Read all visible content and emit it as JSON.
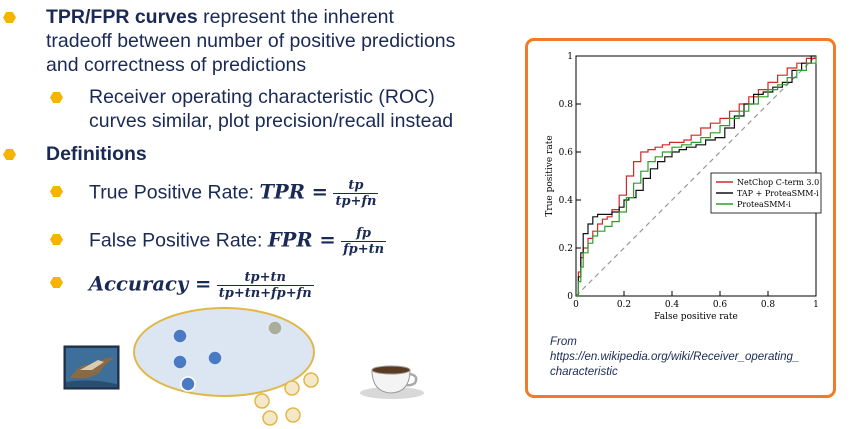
{
  "bullets": {
    "b1_bold": "TPR/FPR curves",
    "b1_line1_rest": " represent the inherent",
    "b1_line2": "tradeoff between number of positive predictions",
    "b1_line3": "and correctness of predictions",
    "b1_sub_line1": "Receiver operating characteristic (ROC)",
    "b1_sub_line2": "curves similar, plot precision/recall instead",
    "b2": "Definitions",
    "tpr_label": "True Positive Rate: ",
    "tpr_lhs": "TPR =",
    "tpr_num": "tp",
    "tpr_den": "tp+fn",
    "fpr_label": "False Positive Rate: ",
    "fpr_lhs": "FPR =",
    "fpr_num": "fp",
    "fpr_den": "fp+tn",
    "acc_lhs": "Accuracy =",
    "acc_num": "tp+tn",
    "acc_den": "tp+tn+fp+fn"
  },
  "caption": {
    "line1": "From",
    "line2": "https://en.wikipedia.org/wiki/Receiver_operating_",
    "line3": "characteristic"
  },
  "colors": {
    "bullet": "#f4b400",
    "frame": "#f07b2a",
    "ellipse_fill": "#dce6f2",
    "ellipse_stroke": "#e0b84a",
    "blue_dot": "#4a7ac4",
    "gray_dot": "#a9ad9a",
    "cream_dot": "#f4e8c8"
  },
  "chart_data": {
    "type": "line",
    "xlabel": "False positive rate",
    "ylabel": "True positive rate",
    "xlim": [
      0,
      1
    ],
    "ylim": [
      0,
      1
    ],
    "x_ticks": [
      0,
      0.2,
      0.4,
      0.6,
      0.8,
      1
    ],
    "y_ticks": [
      0,
      0.2,
      0.4,
      0.6,
      0.8,
      1
    ],
    "x_tick_labels": [
      "0",
      "0.2",
      "0.4",
      "0.6",
      "0.8",
      "1"
    ],
    "y_tick_labels": [
      "0",
      "0.2",
      "0.4",
      "0.6",
      "0.8",
      "1"
    ],
    "legend_position": "center-right",
    "series": [
      {
        "name": "NetChop C-term 3.0",
        "color": "#d62728",
        "x": [
          0,
          0.01,
          0.02,
          0.03,
          0.05,
          0.07,
          0.09,
          0.11,
          0.13,
          0.15,
          0.18,
          0.21,
          0.24,
          0.27,
          0.3,
          0.33,
          0.36,
          0.39,
          0.42,
          0.45,
          0.48,
          0.52,
          0.56,
          0.6,
          0.64,
          0.68,
          0.72,
          0.76,
          0.8,
          0.84,
          0.88,
          0.92,
          0.96,
          1
        ],
        "y": [
          0,
          0.1,
          0.16,
          0.2,
          0.24,
          0.27,
          0.3,
          0.32,
          0.33,
          0.36,
          0.42,
          0.5,
          0.56,
          0.6,
          0.61,
          0.62,
          0.63,
          0.64,
          0.64,
          0.65,
          0.67,
          0.7,
          0.72,
          0.74,
          0.77,
          0.8,
          0.83,
          0.86,
          0.89,
          0.92,
          0.95,
          0.97,
          0.99,
          1
        ]
      },
      {
        "name": "TAP + ProteaSMM-i",
        "color": "#111111",
        "x": [
          0,
          0.01,
          0.02,
          0.03,
          0.05,
          0.07,
          0.09,
          0.12,
          0.15,
          0.18,
          0.2,
          0.22,
          0.25,
          0.28,
          0.31,
          0.34,
          0.37,
          0.4,
          0.43,
          0.46,
          0.5,
          0.54,
          0.58,
          0.62,
          0.66,
          0.7,
          0.74,
          0.78,
          0.82,
          0.86,
          0.9,
          0.94,
          0.98,
          1
        ],
        "y": [
          0,
          0.08,
          0.18,
          0.26,
          0.3,
          0.33,
          0.34,
          0.34,
          0.35,
          0.37,
          0.4,
          0.41,
          0.44,
          0.49,
          0.53,
          0.56,
          0.58,
          0.6,
          0.61,
          0.62,
          0.63,
          0.65,
          0.66,
          0.7,
          0.75,
          0.8,
          0.84,
          0.85,
          0.87,
          0.89,
          0.94,
          0.97,
          1,
          1
        ]
      },
      {
        "name": "ProteaSMM-i",
        "color": "#2ca02c",
        "x": [
          0,
          0.01,
          0.02,
          0.03,
          0.05,
          0.07,
          0.09,
          0.12,
          0.15,
          0.18,
          0.21,
          0.24,
          0.27,
          0.3,
          0.33,
          0.36,
          0.4,
          0.44,
          0.48,
          0.52,
          0.56,
          0.6,
          0.64,
          0.68,
          0.72,
          0.76,
          0.8,
          0.84,
          0.88,
          0.92,
          0.96,
          1
        ],
        "y": [
          0,
          0.06,
          0.12,
          0.18,
          0.22,
          0.25,
          0.27,
          0.29,
          0.31,
          0.35,
          0.41,
          0.47,
          0.52,
          0.56,
          0.58,
          0.6,
          0.62,
          0.63,
          0.64,
          0.66,
          0.68,
          0.71,
          0.74,
          0.77,
          0.8,
          0.83,
          0.86,
          0.88,
          0.91,
          0.94,
          0.97,
          1
        ]
      }
    ]
  }
}
